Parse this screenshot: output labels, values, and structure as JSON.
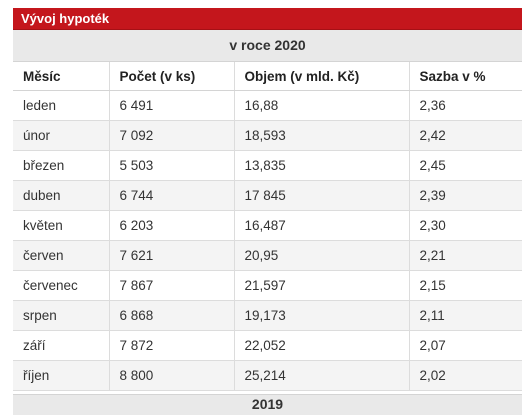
{
  "widget": {
    "title": "Vývoj hypoték"
  },
  "table": {
    "year_label": "v roce 2020",
    "headers": [
      "Měsíc",
      "Počet (v ks)",
      "Objem (v mld. Kč)",
      "Sazba v %"
    ],
    "rows": [
      {
        "month": "leden",
        "count": "6 491",
        "volume": "16,88",
        "rate": "2,36"
      },
      {
        "month": "únor",
        "count": "7 092",
        "volume": "18,593",
        "rate": "2,42"
      },
      {
        "month": "březen",
        "count": "5 503",
        "volume": "13,835",
        "rate": "2,45"
      },
      {
        "month": "duben",
        "count": "6 744",
        "volume": "17 845",
        "rate": "2,39"
      },
      {
        "month": "květen",
        "count": "6 203",
        "volume": "16,487",
        "rate": "2,30"
      },
      {
        "month": "červen",
        "count": "7 621",
        "volume": "20,95",
        "rate": "2,21"
      },
      {
        "month": "červenec",
        "count": "7 867",
        "volume": "21,597",
        "rate": "2,15"
      },
      {
        "month": "srpen",
        "count": "6 868",
        "volume": "19,173",
        "rate": "2,11"
      },
      {
        "month": "září",
        "count": "7 872",
        "volume": "22,052",
        "rate": "2,07"
      },
      {
        "month": "říjen",
        "count": "8 800",
        "volume": "25,214",
        "rate": "2,02"
      }
    ],
    "next_year_label": "2019"
  },
  "colors": {
    "title_bar": "#c4161c",
    "year_band": "#e9e9e9",
    "stripe": "#f4f4f4"
  }
}
